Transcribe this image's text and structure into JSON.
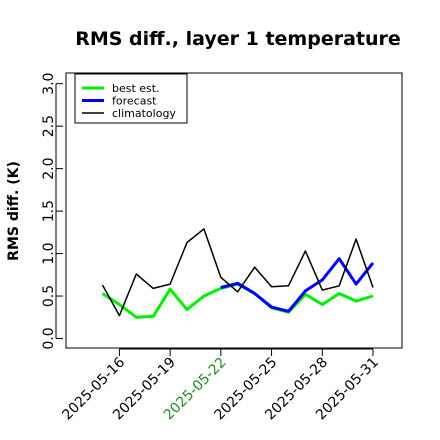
{
  "chart_data": {
    "type": "line",
    "title": "RMS diff., layer 1 temperature",
    "xlabel": "",
    "ylabel": "RMS diff. (K)",
    "ylim": [
      0.0,
      3.0
    ],
    "yticks": [
      "0.0",
      "0.5",
      "1.0",
      "1.5",
      "2.0",
      "2.5",
      "3.0"
    ],
    "xticks": [
      {
        "label": "2025-05-16",
        "color": "#000000"
      },
      {
        "label": "2025-05-19",
        "color": "#000000"
      },
      {
        "label": "2025-05-22",
        "color": "#228b22"
      },
      {
        "label": "2025-05-25",
        "color": "#000000"
      },
      {
        "label": "2025-05-28",
        "color": "#000000"
      },
      {
        "label": "2025-05-31",
        "color": "#000000"
      }
    ],
    "grid": false,
    "legend_position": "top-left",
    "series": [
      {
        "name": "best est.",
        "color": "#00ee00",
        "x": [
          "2025-05-15",
          "2025-05-16",
          "2025-05-17",
          "2025-05-18",
          "2025-05-19",
          "2025-05-20",
          "2025-05-21",
          "2025-05-22",
          "2025-05-23",
          "2025-05-24",
          "2025-05-25",
          "2025-05-26",
          "2025-05-27",
          "2025-05-28",
          "2025-05-29",
          "2025-05-30",
          "2025-05-31"
        ],
        "y": [
          0.53,
          0.4,
          0.25,
          0.26,
          0.58,
          0.34,
          0.5,
          0.59,
          0.64,
          0.53,
          0.36,
          0.31,
          0.52,
          0.4,
          0.53,
          0.44,
          0.5
        ]
      },
      {
        "name": "forecast",
        "color": "#0000ff",
        "x": [
          "2025-05-22",
          "2025-05-23",
          "2025-05-24",
          "2025-05-25",
          "2025-05-26",
          "2025-05-27",
          "2025-05-28",
          "2025-05-29",
          "2025-05-30",
          "2025-05-31"
        ],
        "y": [
          0.6,
          0.65,
          0.53,
          0.37,
          0.32,
          0.56,
          0.69,
          0.94,
          0.64,
          0.89
        ]
      },
      {
        "name": "climatology",
        "color": "#000000",
        "x": [
          "2025-05-15",
          "2025-05-16",
          "2025-05-17",
          "2025-05-18",
          "2025-05-19",
          "2025-05-20",
          "2025-05-21",
          "2025-05-22",
          "2025-05-23",
          "2025-05-24",
          "2025-05-25",
          "2025-05-26",
          "2025-05-27",
          "2025-05-28",
          "2025-05-29",
          "2025-05-30",
          "2025-05-31"
        ],
        "y": [
          0.63,
          0.27,
          0.76,
          0.59,
          0.64,
          1.13,
          1.29,
          0.72,
          0.55,
          0.84,
          0.61,
          0.62,
          1.03,
          0.57,
          0.62,
          1.17,
          0.6
        ]
      }
    ]
  }
}
